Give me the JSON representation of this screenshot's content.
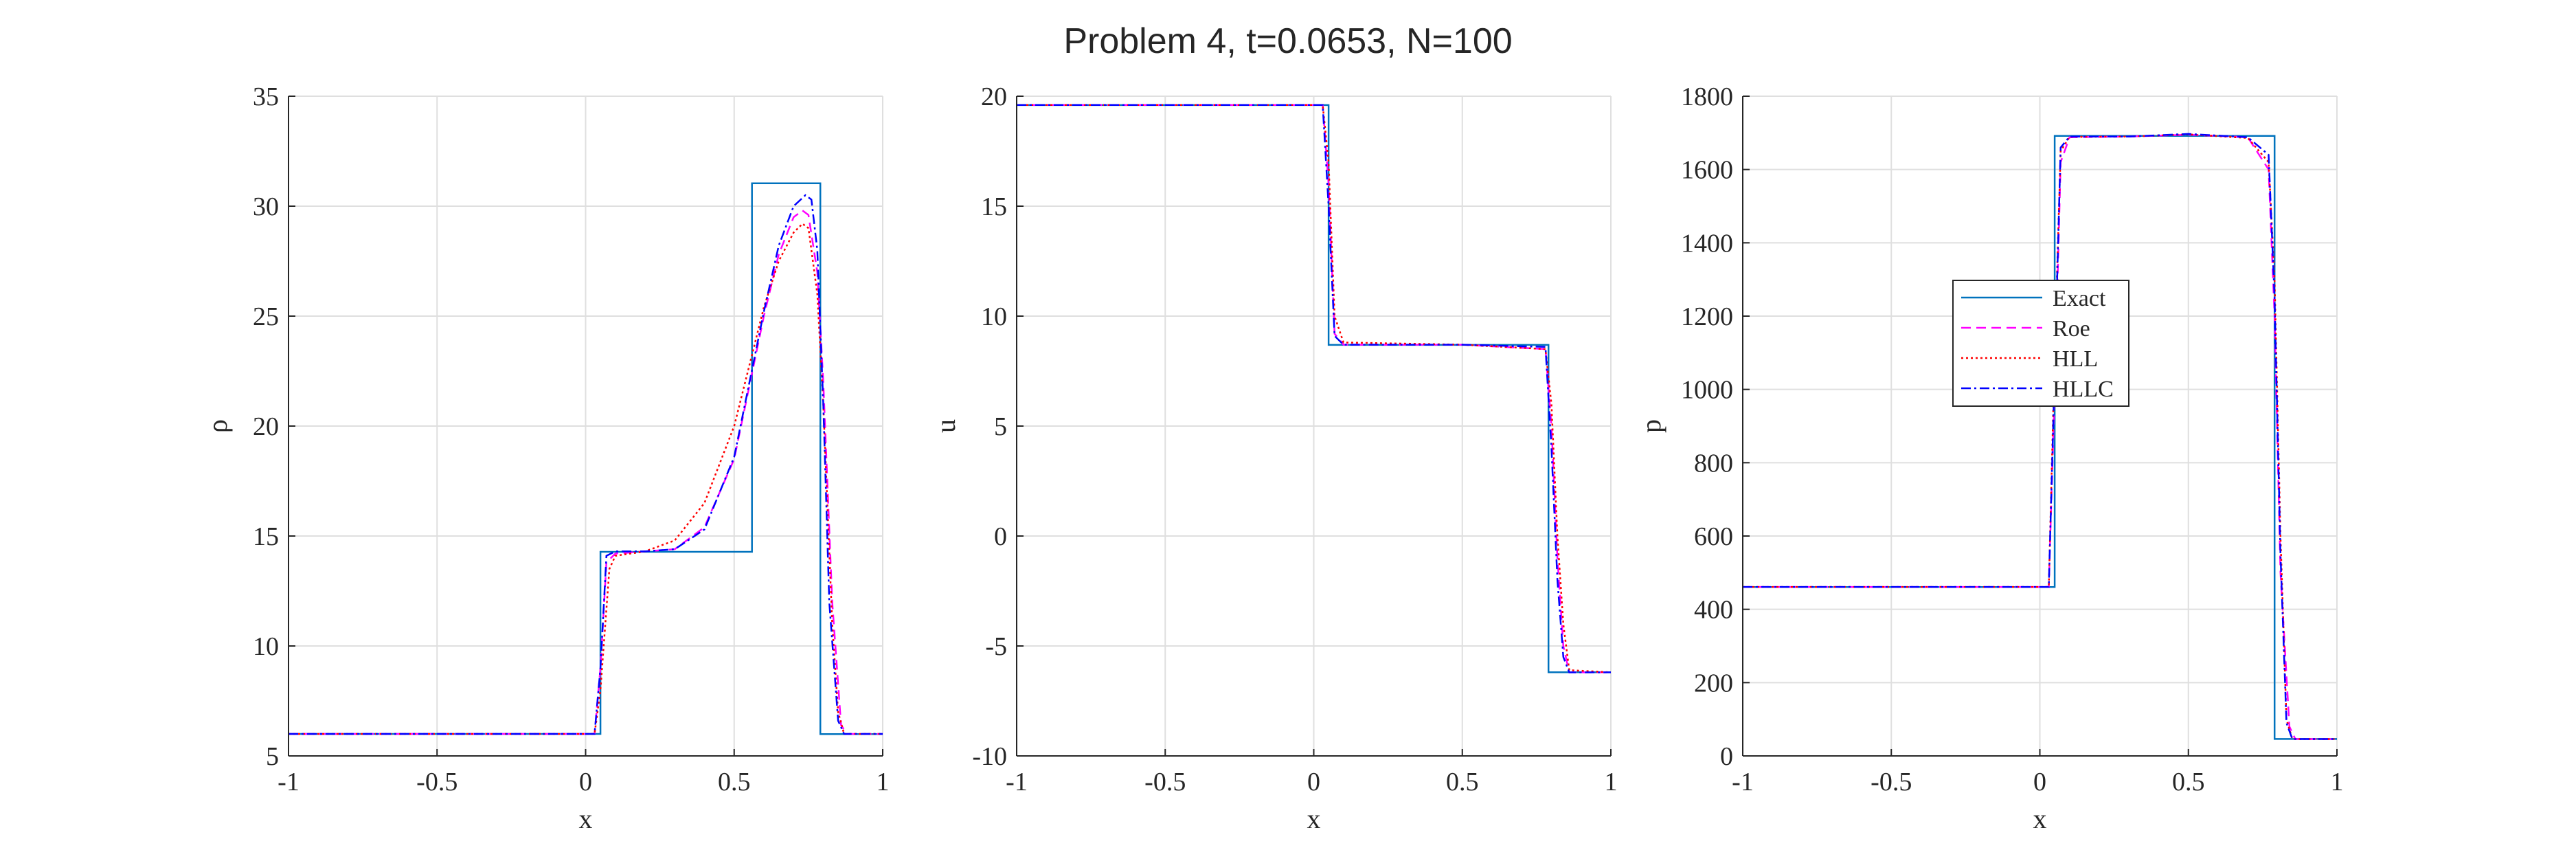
{
  "figure_title": "Problem 4, t=0.0653, N=100",
  "colors": {
    "exact": "#0072BD",
    "roe": "#FF00FF",
    "hll": "#FF0000",
    "hllc": "#0000FF"
  },
  "legend": {
    "placement": "left of center, third panel",
    "entries": [
      {
        "label": "Exact",
        "series": "exact"
      },
      {
        "label": "Roe",
        "series": "roe"
      },
      {
        "label": "HLL",
        "series": "hll"
      },
      {
        "label": "HLLC",
        "series": "hllc"
      }
    ]
  },
  "chart_data": [
    {
      "type": "line",
      "xlabel": "x",
      "ylabel": "ρ",
      "xlim": [
        -1,
        1
      ],
      "ylim": [
        5,
        35
      ],
      "xticks": [
        -1,
        -0.5,
        0,
        0.5,
        1
      ],
      "xtick_labels": [
        "-1",
        "-0.5",
        "0",
        "0.5",
        "1"
      ],
      "yticks": [
        5,
        10,
        15,
        20,
        25,
        30,
        35
      ],
      "ytick_labels": [
        "5",
        "10",
        "15",
        "20",
        "25",
        "30",
        "35"
      ],
      "grid": true,
      "series": [
        {
          "key": "exact",
          "x": [
            -1,
            0.05,
            0.05,
            0.56,
            0.56,
            0.79,
            0.79,
            1
          ],
          "y": [
            5.99924,
            5.99924,
            14.28,
            14.28,
            31.04,
            31.04,
            5.99242,
            5.99242
          ]
        },
        {
          "key": "roe",
          "x": [
            -1,
            0.03,
            0.05,
            0.07,
            0.1,
            0.2,
            0.3,
            0.4,
            0.5,
            0.6,
            0.65,
            0.7,
            0.73,
            0.75,
            0.78,
            0.8,
            0.83,
            0.86,
            0.88,
            1
          ],
          "y": [
            6,
            6,
            9,
            13.8,
            14.2,
            14.3,
            14.4,
            15.4,
            18.5,
            25,
            27.8,
            29.5,
            29.8,
            29.6,
            27,
            22,
            12,
            6.4,
            6,
            6
          ]
        },
        {
          "key": "hll",
          "x": [
            -1,
            0.03,
            0.05,
            0.08,
            0.1,
            0.2,
            0.3,
            0.4,
            0.5,
            0.6,
            0.65,
            0.7,
            0.73,
            0.75,
            0.78,
            0.8,
            0.83,
            0.85,
            0.87,
            1
          ],
          "y": [
            6,
            6,
            8,
            13.5,
            14.1,
            14.3,
            14.8,
            16.5,
            20,
            25.4,
            27.5,
            28.8,
            29.2,
            29,
            26,
            21,
            11,
            7,
            6,
            6
          ]
        },
        {
          "key": "hllc",
          "x": [
            -1,
            0.03,
            0.05,
            0.07,
            0.1,
            0.2,
            0.3,
            0.4,
            0.5,
            0.6,
            0.65,
            0.7,
            0.74,
            0.76,
            0.78,
            0.8,
            0.82,
            0.85,
            0.87,
            1
          ],
          "y": [
            6,
            6,
            9,
            14.1,
            14.3,
            14.3,
            14.4,
            15.3,
            18.6,
            25.2,
            28.2,
            30,
            30.5,
            30.3,
            28,
            21,
            12,
            6.6,
            6,
            6
          ]
        }
      ]
    },
    {
      "type": "line",
      "xlabel": "x",
      "ylabel": "u",
      "xlim": [
        -1,
        1
      ],
      "ylim": [
        -10,
        20
      ],
      "xticks": [
        -1,
        -0.5,
        0,
        0.5,
        1
      ],
      "xtick_labels": [
        "-1",
        "-0.5",
        "0",
        "0.5",
        "1"
      ],
      "yticks": [
        -10,
        -5,
        0,
        5,
        10,
        15,
        20
      ],
      "ytick_labels": [
        "-10",
        "-5",
        "0",
        "5",
        "10",
        "15",
        "20"
      ],
      "grid": true,
      "series": [
        {
          "key": "exact",
          "x": [
            -1,
            0.05,
            0.05,
            0.79,
            0.79,
            1
          ],
          "y": [
            19.5975,
            19.5975,
            8.68975,
            8.68975,
            -6.19633,
            -6.19633
          ]
        },
        {
          "key": "roe",
          "x": [
            -1,
            0.03,
            0.05,
            0.07,
            0.1,
            0.5,
            0.78,
            0.8,
            0.82,
            0.84,
            0.86,
            1
          ],
          "y": [
            19.6,
            19.6,
            16,
            9.2,
            8.7,
            8.7,
            8.5,
            5,
            -1,
            -5,
            -6.2,
            -6.2
          ]
        },
        {
          "key": "hll",
          "x": [
            -1,
            0.03,
            0.05,
            0.07,
            0.1,
            0.5,
            0.78,
            0.8,
            0.82,
            0.84,
            0.86,
            1
          ],
          "y": [
            19.6,
            19.6,
            17,
            10,
            8.8,
            8.7,
            8.5,
            6,
            0,
            -4,
            -6.1,
            -6.2
          ]
        },
        {
          "key": "hllc",
          "x": [
            -1,
            0.03,
            0.05,
            0.07,
            0.1,
            0.5,
            0.78,
            0.8,
            0.82,
            0.84,
            0.86,
            1
          ],
          "y": [
            19.6,
            19.6,
            15,
            9.1,
            8.7,
            8.7,
            8.6,
            4,
            -2,
            -5.5,
            -6.2,
            -6.2
          ]
        }
      ]
    },
    {
      "type": "line",
      "xlabel": "x",
      "ylabel": "p",
      "xlim": [
        -1,
        1
      ],
      "ylim": [
        0,
        1800
      ],
      "xticks": [
        -1,
        -0.5,
        0,
        0.5,
        1
      ],
      "xtick_labels": [
        "-1",
        "-0.5",
        "0",
        "0.5",
        "1"
      ],
      "yticks": [
        0,
        200,
        400,
        600,
        800,
        1000,
        1200,
        1400,
        1600,
        1800
      ],
      "ytick_labels": [
        "0",
        "200",
        "400",
        "600",
        "800",
        "1000",
        "1200",
        "1400",
        "1600",
        "1800"
      ],
      "grid": true,
      "series": [
        {
          "key": "exact",
          "x": [
            -1,
            0.05,
            0.05,
            0.79,
            0.79,
            1
          ],
          "y": [
            460.894,
            460.894,
            1691.64,
            1691.64,
            46.095,
            46.095
          ]
        },
        {
          "key": "roe",
          "x": [
            -1,
            0.03,
            0.05,
            0.07,
            0.1,
            0.3,
            0.5,
            0.7,
            0.77,
            0.79,
            0.81,
            0.84,
            0.86,
            1
          ],
          "y": [
            461,
            461,
            1000,
            1620,
            1688,
            1690,
            1695,
            1688,
            1600,
            1200,
            500,
            80,
            46,
            46
          ]
        },
        {
          "key": "hll",
          "x": [
            -1,
            0.03,
            0.05,
            0.07,
            0.1,
            0.3,
            0.5,
            0.7,
            0.77,
            0.79,
            0.81,
            0.83,
            0.85,
            1
          ],
          "y": [
            461,
            461,
            1100,
            1650,
            1689,
            1690,
            1696,
            1686,
            1620,
            1300,
            600,
            100,
            46,
            46
          ]
        },
        {
          "key": "hllc",
          "x": [
            -1,
            0.03,
            0.05,
            0.07,
            0.1,
            0.3,
            0.5,
            0.7,
            0.77,
            0.79,
            0.81,
            0.83,
            0.85,
            1
          ],
          "y": [
            461,
            461,
            1050,
            1660,
            1690,
            1690,
            1697,
            1688,
            1640,
            1250,
            550,
            90,
            46,
            46
          ]
        }
      ]
    }
  ]
}
